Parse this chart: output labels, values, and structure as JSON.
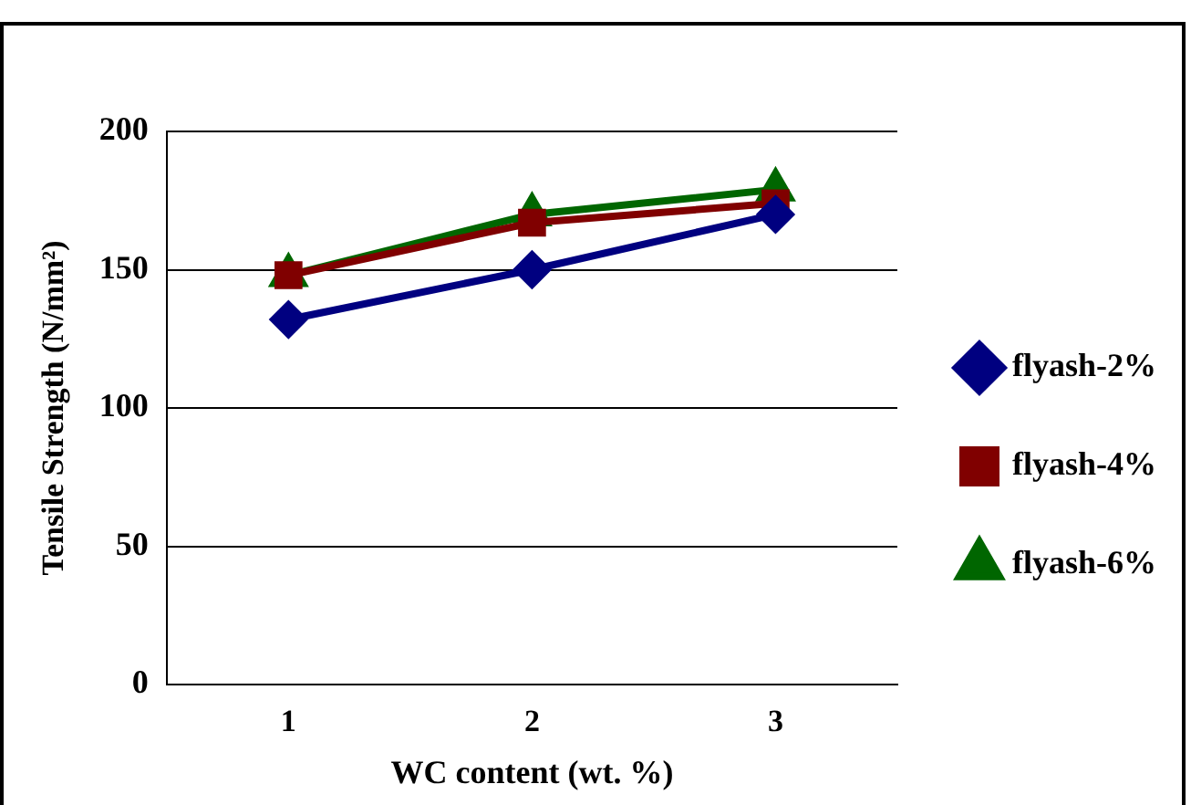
{
  "chart_data": {
    "type": "line",
    "xlabel": "WC content (wt. %)",
    "ylabel": "Tensile Strength (N/mm²)",
    "categories": [
      "1",
      "2",
      "3"
    ],
    "series": [
      {
        "name": "flyash-2%",
        "color": "#000080",
        "values": [
          132,
          150,
          170
        ],
        "marker": "diamond"
      },
      {
        "name": "flyash-4%",
        "color": "#800000",
        "values": [
          148,
          167,
          174
        ],
        "marker": "square"
      },
      {
        "name": "flyash-6%",
        "color": "#006600",
        "values": [
          148,
          170,
          179
        ],
        "marker": "triangle"
      }
    ],
    "ylim": [
      0,
      200
    ],
    "yticks": [
      0,
      50,
      100,
      150,
      200
    ],
    "grid": "y",
    "legend": "right"
  }
}
